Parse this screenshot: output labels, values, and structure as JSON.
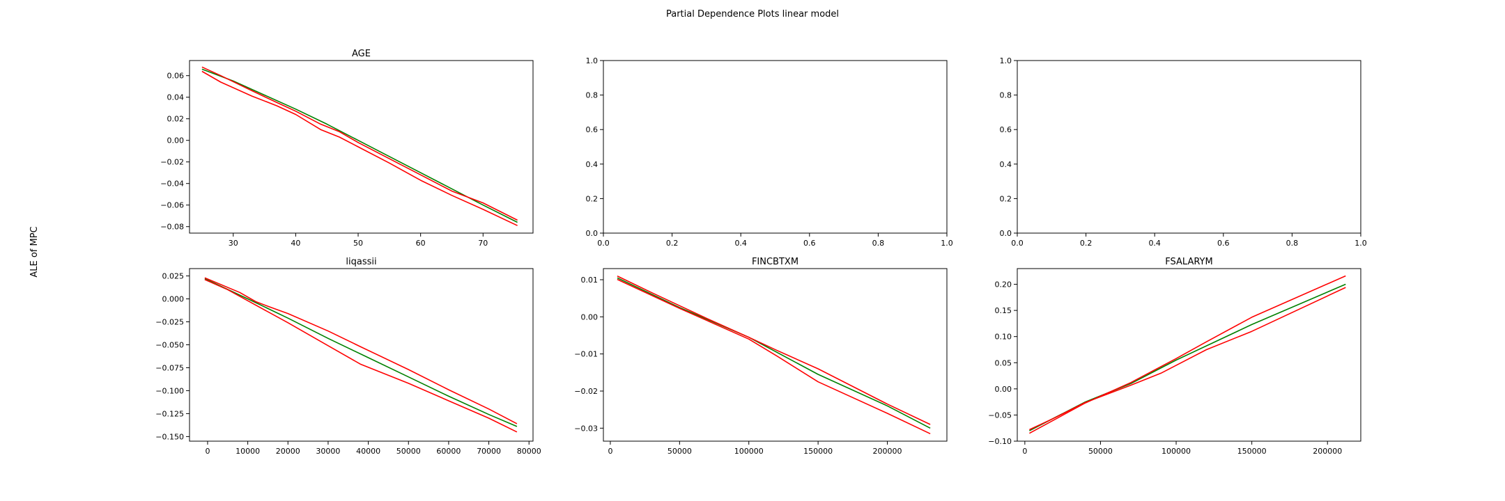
{
  "figure": {
    "suptitle": "Partial Dependence Plots linear model",
    "shared_ylabel": "ALE of MPC"
  },
  "colors": {
    "green": "#008000",
    "red": "#ff0000",
    "axis": "#000000"
  },
  "chart_data": [
    {
      "type": "line",
      "title": "AGE",
      "xlim": [
        23,
        78
      ],
      "ylim": [
        -0.086,
        0.074
      ],
      "xticks": [
        30,
        40,
        50,
        60,
        70
      ],
      "yticks": [
        0.06,
        0.04,
        0.02,
        0.0,
        -0.02,
        -0.04,
        -0.06,
        -0.08
      ],
      "series": [
        {
          "color": "green",
          "x": [
            25,
            30,
            35,
            40,
            45,
            50,
            55,
            60,
            65,
            70,
            75.5
          ],
          "y": [
            0.066,
            0.055,
            0.042,
            0.029,
            0.015,
            0.0,
            -0.015,
            -0.03,
            -0.045,
            -0.06,
            -0.076
          ]
        },
        {
          "color": "red",
          "x": [
            25,
            28,
            33,
            37,
            40,
            44,
            47,
            50,
            55,
            60,
            65,
            70,
            75.5
          ],
          "y": [
            0.068,
            0.06,
            0.046,
            0.035,
            0.027,
            0.015,
            0.008,
            -0.002,
            -0.017,
            -0.032,
            -0.047,
            -0.058,
            -0.074
          ]
        },
        {
          "color": "red",
          "x": [
            25,
            28,
            33,
            37,
            40,
            44,
            47,
            50,
            55,
            60,
            65,
            70,
            75.5
          ],
          "y": [
            0.064,
            0.054,
            0.041,
            0.032,
            0.024,
            0.01,
            0.003,
            -0.006,
            -0.021,
            -0.037,
            -0.051,
            -0.064,
            -0.079
          ]
        }
      ]
    },
    {
      "type": "line",
      "title": "",
      "xlim": [
        0.0,
        1.0
      ],
      "ylim": [
        0.0,
        1.0
      ],
      "xticks": [
        0.0,
        0.2,
        0.4,
        0.6,
        0.8,
        1.0
      ],
      "yticks": [
        1.0,
        0.8,
        0.6,
        0.4,
        0.2,
        0.0
      ],
      "series": []
    },
    {
      "type": "line",
      "title": "",
      "xlim": [
        0.0,
        1.0
      ],
      "ylim": [
        0.0,
        1.0
      ],
      "xticks": [
        0.0,
        0.2,
        0.4,
        0.6,
        0.8,
        1.0
      ],
      "yticks": [
        1.0,
        0.8,
        0.6,
        0.4,
        0.2,
        0.0
      ],
      "series": []
    },
    {
      "type": "line",
      "title": "liqassii",
      "xlim": [
        -4500,
        81000
      ],
      "ylim": [
        -0.155,
        0.033
      ],
      "xticks": [
        0,
        10000,
        20000,
        30000,
        40000,
        50000,
        60000,
        70000,
        80000
      ],
      "yticks": [
        0.025,
        0.0,
        -0.025,
        -0.05,
        -0.075,
        -0.1,
        -0.125,
        -0.15
      ],
      "series": [
        {
          "color": "green",
          "x": [
            -700,
            10000,
            20000,
            30000,
            40000,
            50000,
            60000,
            70000,
            77000
          ],
          "y": [
            0.022,
            0.0,
            -0.021,
            -0.043,
            -0.064,
            -0.085,
            -0.106,
            -0.126,
            -0.139
          ]
        },
        {
          "color": "red",
          "x": [
            -700,
            8000,
            12000,
            15000,
            20000,
            30000,
            38000,
            50000,
            60000,
            70000,
            77000
          ],
          "y": [
            0.023,
            0.007,
            -0.003,
            -0.008,
            -0.016,
            -0.035,
            -0.052,
            -0.077,
            -0.099,
            -0.12,
            -0.136
          ]
        },
        {
          "color": "red",
          "x": [
            -700,
            5000,
            10000,
            20000,
            30000,
            38000,
            50000,
            60000,
            70000,
            77000
          ],
          "y": [
            0.021,
            0.01,
            -0.002,
            -0.026,
            -0.051,
            -0.071,
            -0.092,
            -0.111,
            -0.13,
            -0.145
          ]
        }
      ]
    },
    {
      "type": "line",
      "title": "FINCBTXM",
      "xlim": [
        -5000,
        243000
      ],
      "ylim": [
        -0.0335,
        0.013
      ],
      "xticks": [
        0,
        50000,
        100000,
        150000,
        200000
      ],
      "yticks": [
        0.01,
        0.0,
        -0.01,
        -0.02,
        -0.03
      ],
      "series": [
        {
          "color": "green",
          "x": [
            5000,
            50000,
            100000,
            150000,
            200000,
            231000
          ],
          "y": [
            0.0105,
            0.0025,
            -0.0055,
            -0.0155,
            -0.024,
            -0.03
          ]
        },
        {
          "color": "red",
          "x": [
            5000,
            30000,
            50000,
            70000,
            100000,
            120000,
            150000,
            200000,
            231000
          ],
          "y": [
            0.011,
            0.0065,
            0.003,
            -0.0005,
            -0.0055,
            -0.009,
            -0.014,
            -0.0235,
            -0.029
          ]
        },
        {
          "color": "red",
          "x": [
            5000,
            50000,
            100000,
            120000,
            150000,
            200000,
            231000
          ],
          "y": [
            0.0101,
            0.0023,
            -0.006,
            -0.0105,
            -0.0175,
            -0.026,
            -0.0315
          ]
        }
      ]
    },
    {
      "type": "line",
      "title": "FSALARYM",
      "xlim": [
        -5000,
        222000
      ],
      "ylim": [
        -0.1,
        0.23
      ],
      "xticks": [
        0,
        50000,
        100000,
        150000,
        200000
      ],
      "yticks": [
        0.2,
        0.15,
        0.1,
        0.05,
        0.0,
        -0.05,
        -0.1
      ],
      "series": [
        {
          "color": "green",
          "x": [
            3000,
            40000,
            70000,
            100000,
            150000,
            212000
          ],
          "y": [
            -0.08,
            -0.025,
            0.01,
            0.055,
            0.123,
            0.2
          ]
        },
        {
          "color": "red",
          "x": [
            3000,
            40000,
            70000,
            100000,
            120000,
            150000,
            212000
          ],
          "y": [
            -0.085,
            -0.027,
            0.012,
            0.058,
            0.09,
            0.137,
            0.216
          ]
        },
        {
          "color": "red",
          "x": [
            3000,
            20000,
            40000,
            70000,
            90000,
            120000,
            150000,
            212000
          ],
          "y": [
            -0.078,
            -0.055,
            -0.026,
            0.007,
            0.03,
            0.075,
            0.11,
            0.194
          ]
        }
      ]
    }
  ]
}
